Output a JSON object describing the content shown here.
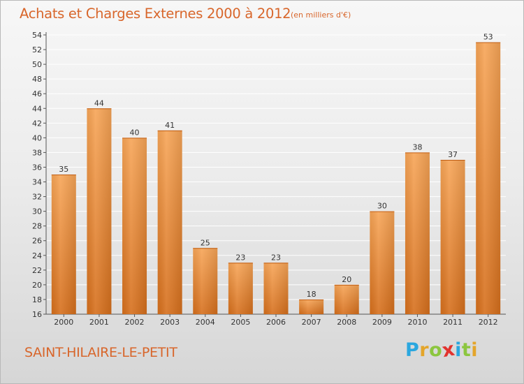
{
  "header": {
    "title": "Achats et Charges Externes 2000 à 2012",
    "unit": "(en milliers d'€)"
  },
  "footer": {
    "city": "SAINT-HILAIRE-LE-PETIT",
    "logo_letters": [
      "P",
      "r",
      "o",
      "x",
      "i",
      "t",
      "i"
    ],
    "logo_colors": [
      "#2aa7df",
      "#e4a52a",
      "#8cc63f",
      "#e2332e",
      "#2aa7df",
      "#8cc63f",
      "#e4a52a"
    ]
  },
  "colors": {
    "bar_light": "#f7a557",
    "bar_dark": "#d66f1c",
    "title": "#d8662b"
  },
  "chart_data": {
    "type": "bar",
    "title": "Achats et Charges Externes 2000 à 2012",
    "xlabel": "",
    "ylabel": "",
    "categories": [
      "2000",
      "2001",
      "2002",
      "2003",
      "2004",
      "2005",
      "2006",
      "2007",
      "2008",
      "2009",
      "2010",
      "2011",
      "2012"
    ],
    "values": [
      35,
      44,
      40,
      41,
      25,
      23,
      23,
      18,
      20,
      30,
      38,
      37,
      53
    ],
    "ylim": [
      16,
      54
    ],
    "yticks": [
      16,
      18,
      20,
      22,
      24,
      26,
      28,
      30,
      32,
      34,
      36,
      38,
      40,
      42,
      44,
      46,
      48,
      50,
      52,
      54
    ],
    "grid": true,
    "legend": "none"
  }
}
